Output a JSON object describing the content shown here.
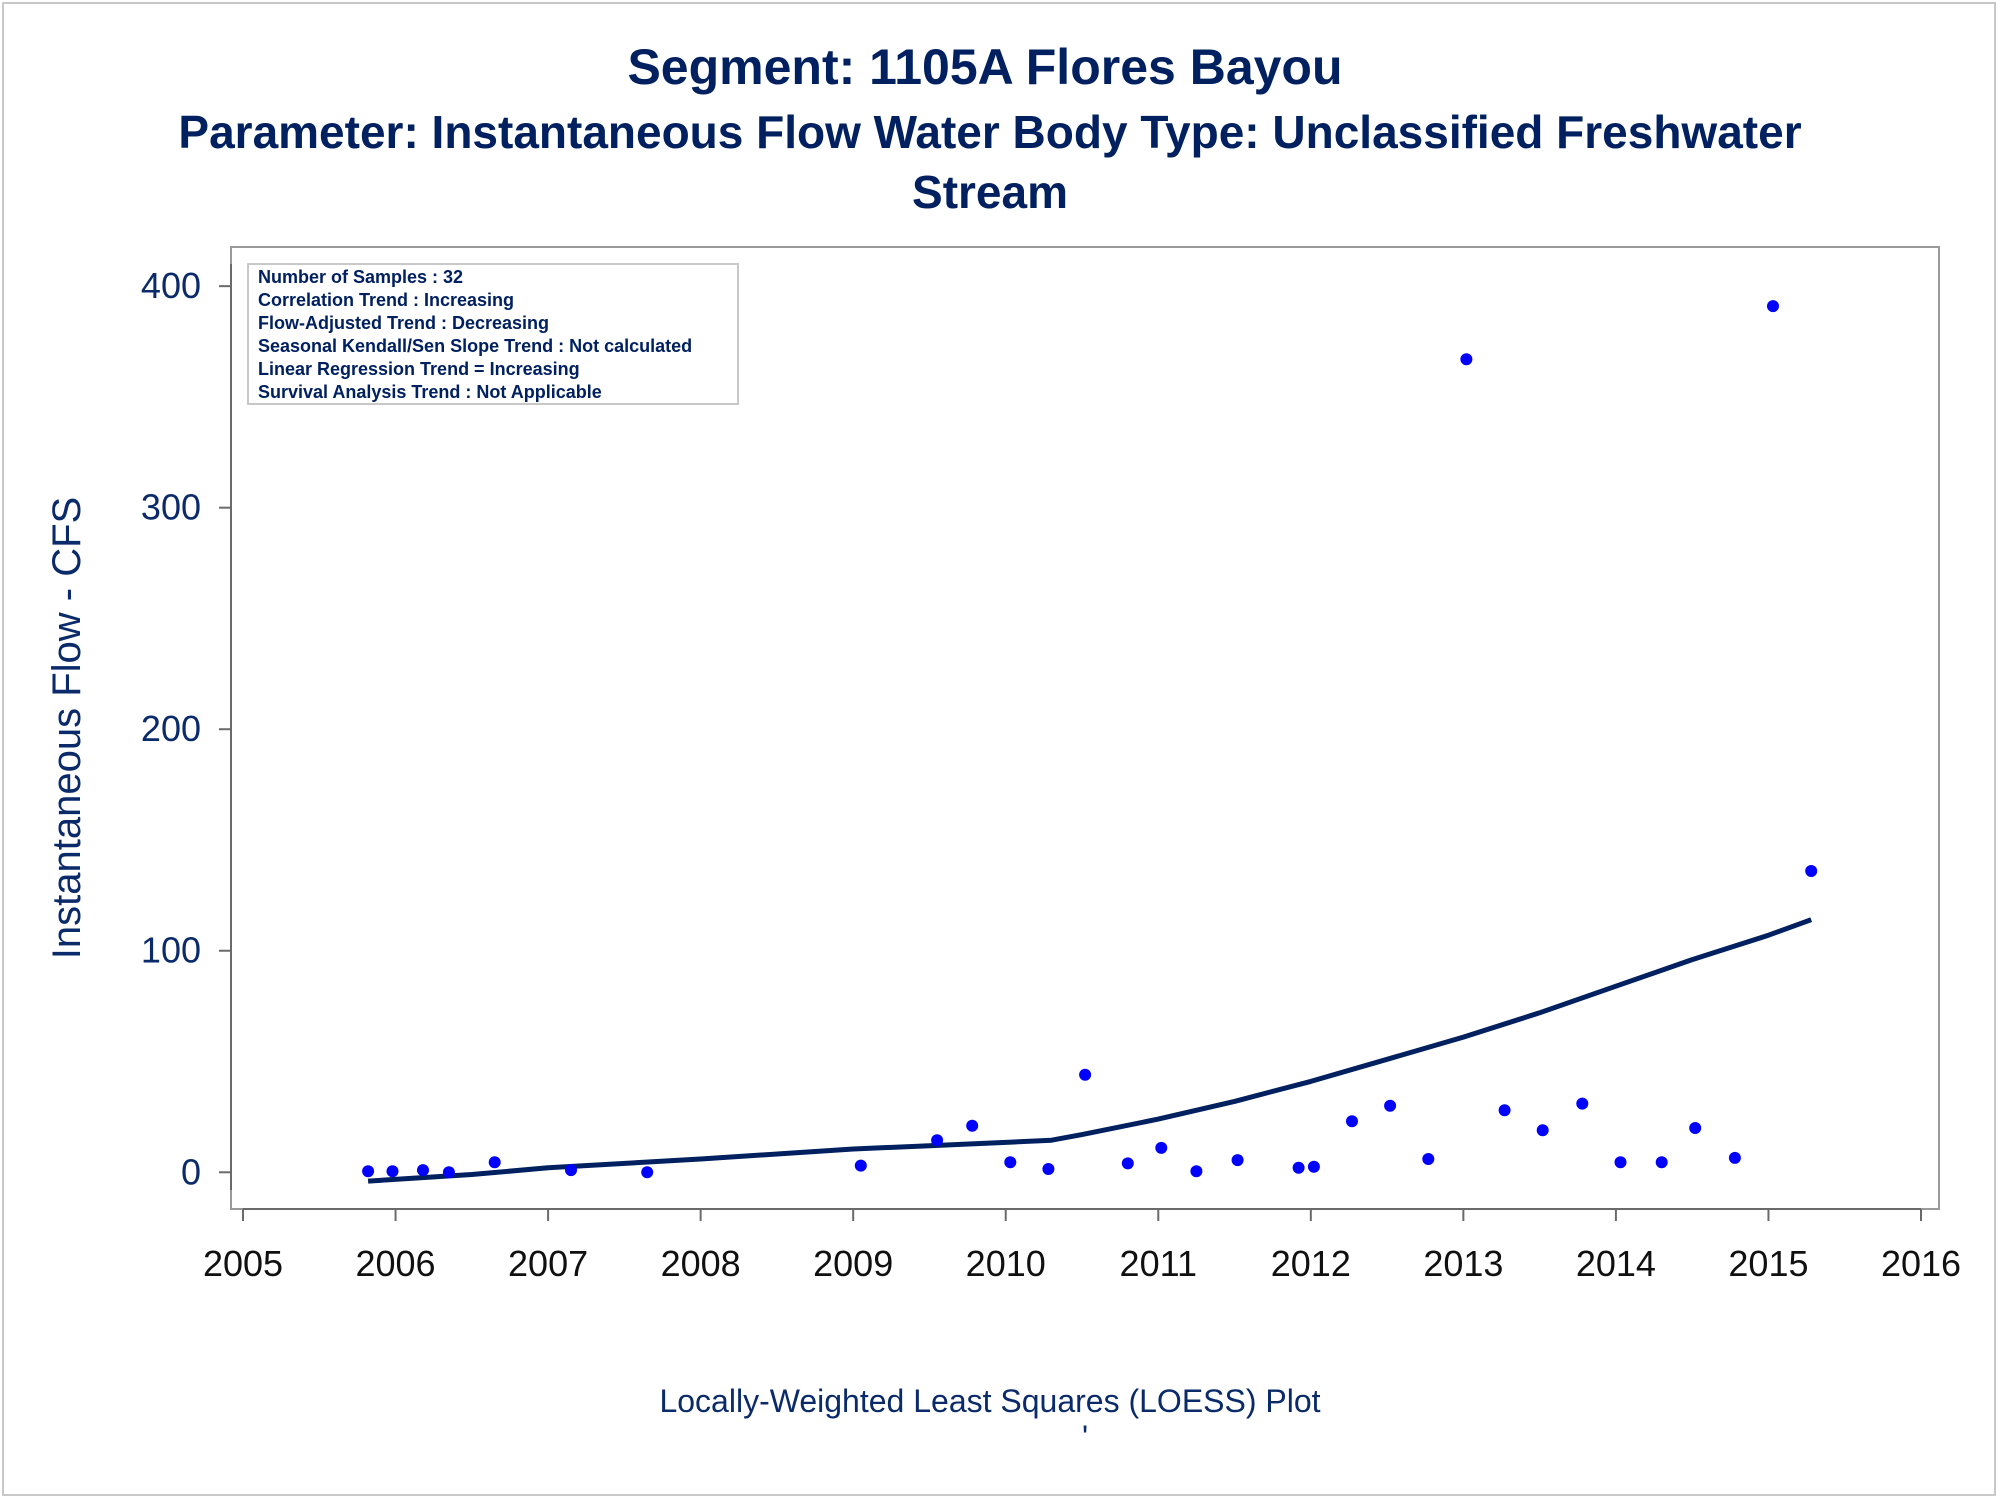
{
  "chart_data": {
    "type": "scatter",
    "title": "Segment: 1105A  Flores Bayou",
    "subtitle_line1": "Parameter: Instantaneous Flow   Water Body Type: Unclassified Freshwater",
    "subtitle_line2": "Stream",
    "xlabel": "Locally-Weighted Least Squares (LOESS) Plot",
    "footnote_mark": "'",
    "ylabel": "Instantaneous Flow - CFS",
    "xlim": [
      2005,
      2016
    ],
    "ylim": [
      -8,
      410
    ],
    "x_ticks": [
      2005,
      2006,
      2007,
      2008,
      2009,
      2010,
      2011,
      2012,
      2013,
      2014,
      2015,
      2016
    ],
    "x_tick_labels": [
      "2005",
      "2006",
      "2007",
      "2008",
      "2009",
      "2010",
      "2011",
      "2012",
      "2013",
      "2014",
      "2015",
      "2016"
    ],
    "y_ticks": [
      0,
      100,
      200,
      300,
      400
    ],
    "y_tick_labels": [
      "0",
      "100",
      "200",
      "300",
      "400"
    ],
    "grid": false,
    "stats_box": [
      "Number of Samples : 32",
      "Correlation Trend : Increasing",
      "Flow-Adjusted Trend : Decreasing",
      "Seasonal Kendall/Sen Slope Trend : Not calculated",
      "Linear Regression Trend = Increasing",
      "Survival Analysis Trend : Not Applicable"
    ],
    "series": [
      {
        "kind": "points",
        "color": "#0000ff",
        "points": [
          [
            2005.82,
            0.5
          ],
          [
            2005.98,
            0.5
          ],
          [
            2006.18,
            1
          ],
          [
            2006.35,
            0
          ],
          [
            2006.65,
            4.5
          ],
          [
            2007.15,
            1
          ],
          [
            2007.65,
            0
          ],
          [
            2009.05,
            3
          ],
          [
            2009.55,
            14.5
          ],
          [
            2009.78,
            21
          ],
          [
            2010.03,
            4.5
          ],
          [
            2010.28,
            1.5
          ],
          [
            2010.52,
            44
          ],
          [
            2010.8,
            4
          ],
          [
            2011.02,
            11
          ],
          [
            2011.25,
            0.5
          ],
          [
            2011.52,
            5.5
          ],
          [
            2011.92,
            2
          ],
          [
            2012.02,
            2.5
          ],
          [
            2012.27,
            23
          ],
          [
            2012.52,
            30
          ],
          [
            2012.77,
            6
          ],
          [
            2013.02,
            367
          ],
          [
            2013.27,
            28
          ],
          [
            2013.52,
            19
          ],
          [
            2013.78,
            31
          ],
          [
            2014.03,
            4.5
          ],
          [
            2014.3,
            4.5
          ],
          [
            2014.52,
            20
          ],
          [
            2014.78,
            6.5
          ],
          [
            2015.03,
            391
          ],
          [
            2015.28,
            136
          ]
        ]
      },
      {
        "kind": "loess",
        "color": "#002060",
        "points": [
          [
            2005.82,
            -4
          ],
          [
            2006.5,
            -1
          ],
          [
            2007.0,
            2
          ],
          [
            2008.0,
            6
          ],
          [
            2009.0,
            10.5
          ],
          [
            2009.5,
            12
          ],
          [
            2010.0,
            13.5
          ],
          [
            2010.3,
            14.5
          ],
          [
            2010.5,
            17
          ],
          [
            2011.0,
            24
          ],
          [
            2011.5,
            32
          ],
          [
            2012.0,
            41
          ],
          [
            2012.5,
            51
          ],
          [
            2013.0,
            61
          ],
          [
            2013.5,
            72
          ],
          [
            2014.0,
            84
          ],
          [
            2014.5,
            96
          ],
          [
            2015.0,
            107
          ],
          [
            2015.28,
            114
          ]
        ]
      }
    ]
  }
}
